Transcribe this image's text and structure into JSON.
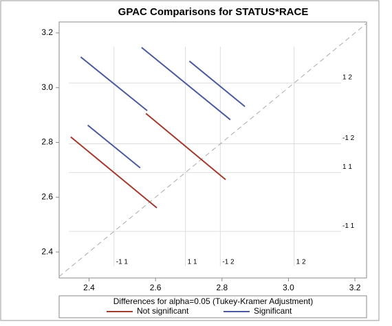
{
  "chart_data": {
    "type": "diffogram",
    "title": "GPAC Comparisons for STATUS*RACE",
    "legend_title": "Differences for alpha=0.05 (Tukey-Kramer Adjustment)",
    "xlim": [
      2.31,
      3.235
    ],
    "ylim": [
      2.305,
      3.24
    ],
    "xticks": [
      2.4,
      2.6,
      2.8,
      {
        "value": 3,
        "label": "3.0"
      },
      3.2
    ],
    "yticks": [
      2.4,
      2.6,
      2.8,
      {
        "value": 3,
        "label": "3.0"
      },
      3.2
    ],
    "groups": [
      {
        "label": "-1 1",
        "value": 2.475
      },
      {
        "label": "1 1",
        "value": 2.69
      },
      {
        "label": "-1 2",
        "value": 2.795
      },
      {
        "label": "1 2",
        "value": 3.017
      }
    ],
    "series": [
      {
        "name": "Not significant",
        "color": "#a23a2e",
        "segments": [
          {
            "x": [
              2.345,
              2.604
            ],
            "y": [
              2.82,
              2.561
            ]
          },
          {
            "x": [
              2.571,
              2.811
            ],
            "y": [
              2.906,
              2.664
            ]
          }
        ]
      },
      {
        "name": "Significant",
        "color": "#4b5a9c",
        "segments": [
          {
            "x": [
              2.396,
              2.554
            ],
            "y": [
              2.863,
              2.707
            ]
          },
          {
            "x": [
              2.375,
              2.575
            ],
            "y": [
              3.112,
              2.916
            ]
          },
          {
            "x": [
              2.558,
              2.825
            ],
            "y": [
              3.147,
              2.883
            ]
          },
          {
            "x": [
              2.702,
              2.869
            ],
            "y": [
              3.097,
              2.931
            ]
          }
        ]
      }
    ]
  }
}
